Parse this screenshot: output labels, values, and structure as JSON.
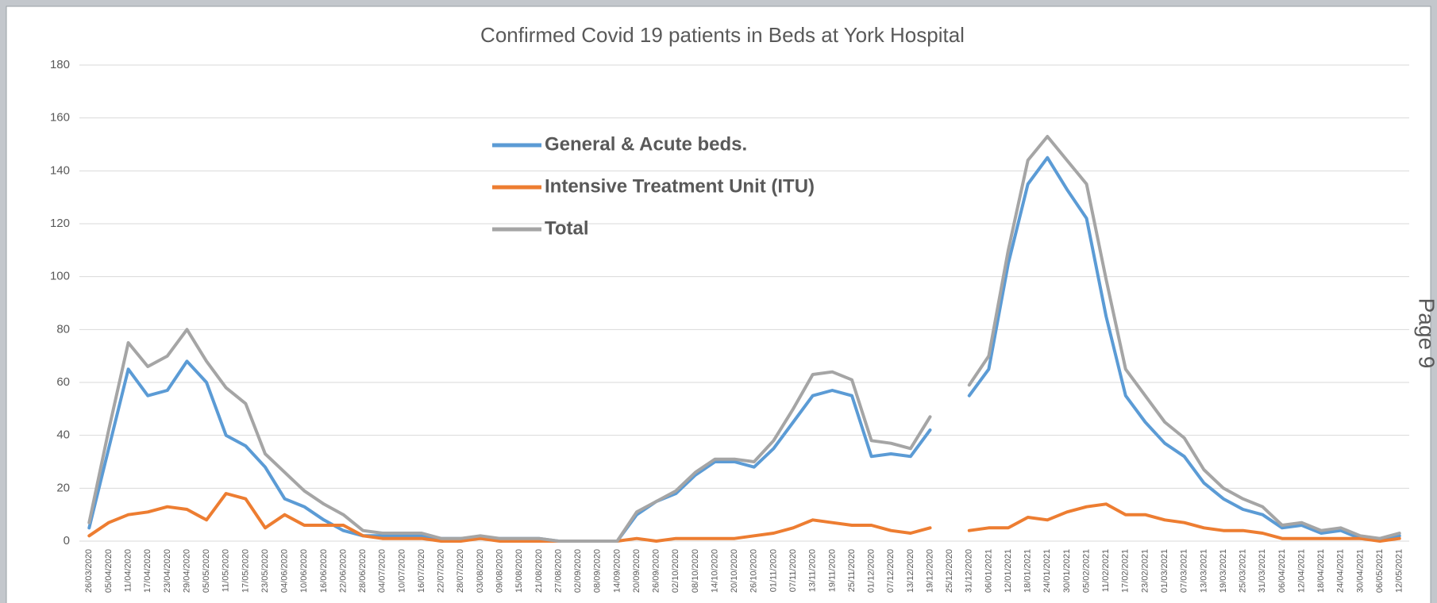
{
  "chart_data": {
    "type": "line",
    "title": "Confirmed Covid 19 patients in Beds at York Hospital",
    "page_label": "Page 9",
    "categories": [
      "26/03/2020",
      "05/04/2020",
      "11/04/2020",
      "17/04/2020",
      "23/04/2020",
      "29/04/2020",
      "05/05/2020",
      "11/05/2020",
      "17/05/2020",
      "23/05/2020",
      "04/06/2020",
      "10/06/2020",
      "16/06/2020",
      "22/06/2020",
      "28/06/2020",
      "04/07/2020",
      "10/07/2020",
      "16/07/2020",
      "22/07/2020",
      "28/07/2020",
      "03/08/2020",
      "09/08/2020",
      "15/08/2020",
      "21/08/2020",
      "27/08/2020",
      "02/09/2020",
      "08/09/2020",
      "14/09/2020",
      "20/09/2020",
      "26/09/2020",
      "02/10/2020",
      "08/10/2020",
      "14/10/2020",
      "20/10/2020",
      "26/10/2020",
      "01/11/2020",
      "07/11/2020",
      "13/11/2020",
      "19/11/2020",
      "25/11/2020",
      "01/12/2020",
      "07/12/2020",
      "13/12/2020",
      "19/12/2020",
      "25/12/2020",
      "31/12/2020",
      "06/01/2021",
      "12/01/2021",
      "18/01/2021",
      "24/01/2021",
      "30/01/2021",
      "05/02/2021",
      "11/02/2021",
      "17/02/2021",
      "23/02/2021",
      "01/03/2021",
      "07/03/2021",
      "13/03/2021",
      "19/03/2021",
      "25/03/2021",
      "31/03/2021",
      "06/04/2021",
      "12/04/2021",
      "18/04/2021",
      "24/04/2021",
      "30/04/2021",
      "06/05/2021",
      "12/05/2021"
    ],
    "series": [
      {
        "name": "General & Acute beds.",
        "color": "#5b9bd5",
        "values": [
          5,
          35,
          65,
          55,
          57,
          68,
          60,
          40,
          36,
          28,
          16,
          13,
          8,
          4,
          2,
          2,
          2,
          2,
          1,
          1,
          1,
          1,
          1,
          1,
          0,
          0,
          0,
          0,
          10,
          15,
          18,
          25,
          30,
          30,
          28,
          35,
          45,
          55,
          57,
          55,
          32,
          33,
          32,
          42,
          null,
          55,
          65,
          105,
          135,
          145,
          133,
          122,
          85,
          55,
          45,
          37,
          32,
          22,
          16,
          12,
          10,
          5,
          6,
          3,
          4,
          1,
          1,
          2
        ]
      },
      {
        "name": "Intensive Treatment Unit (ITU)",
        "color": "#ed7d31",
        "values": [
          2,
          7,
          10,
          11,
          13,
          12,
          8,
          18,
          16,
          5,
          10,
          6,
          6,
          6,
          2,
          1,
          1,
          1,
          0,
          0,
          1,
          0,
          0,
          0,
          0,
          0,
          0,
          0,
          1,
          0,
          1,
          1,
          1,
          1,
          2,
          3,
          5,
          8,
          7,
          6,
          6,
          4,
          3,
          5,
          null,
          4,
          5,
          5,
          9,
          8,
          11,
          13,
          14,
          10,
          10,
          8,
          7,
          5,
          4,
          4,
          3,
          1,
          1,
          1,
          1,
          1,
          0,
          1
        ]
      },
      {
        "name": "Total",
        "color": "#a5a5a5",
        "values": [
          7,
          42,
          75,
          66,
          70,
          80,
          68,
          58,
          52,
          33,
          26,
          19,
          14,
          10,
          4,
          3,
          3,
          3,
          1,
          1,
          2,
          1,
          1,
          1,
          0,
          0,
          0,
          0,
          11,
          15,
          19,
          26,
          31,
          31,
          30,
          38,
          50,
          63,
          64,
          61,
          38,
          37,
          35,
          47,
          null,
          59,
          70,
          110,
          144,
          153,
          144,
          135,
          99,
          65,
          55,
          45,
          39,
          27,
          20,
          16,
          13,
          6,
          7,
          4,
          5,
          2,
          1,
          3
        ]
      }
    ],
    "ylim": [
      0,
      180
    ],
    "yticks": [
      0,
      20,
      40,
      60,
      80,
      100,
      120,
      140,
      160,
      180
    ],
    "grid": true
  }
}
